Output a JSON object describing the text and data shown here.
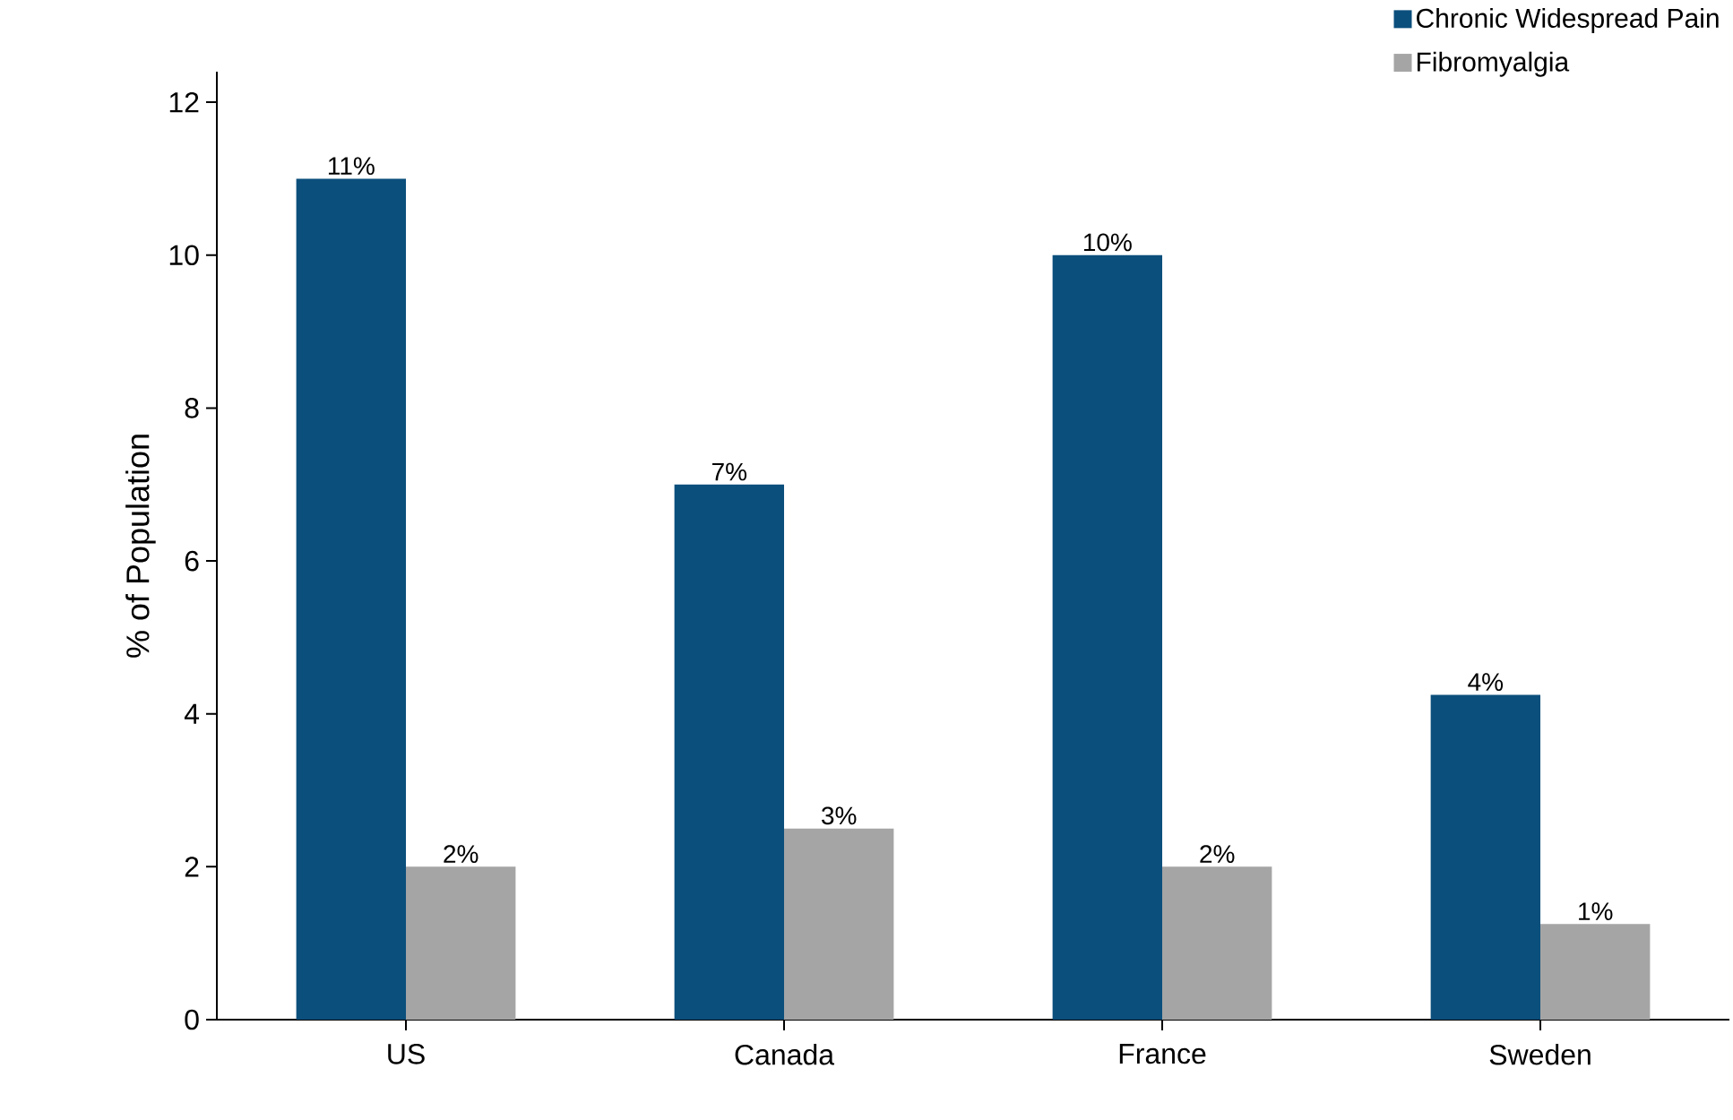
{
  "chart_data": {
    "type": "bar",
    "ylabel": "% of Population",
    "categories": [
      "US",
      "Canada",
      "France",
      "Sweden"
    ],
    "series": [
      {
        "name": "Chronic Widespread Pain",
        "color": "#0b4f7c",
        "values": [
          11,
          7,
          10,
          4.25
        ],
        "value_labels": [
          "11%",
          "7%",
          "10%",
          "4%"
        ]
      },
      {
        "name": "Fibromyalgia",
        "color": "#a5a5a5",
        "values": [
          2,
          2.5,
          2,
          1.25
        ],
        "value_labels": [
          "2%",
          "3%",
          "2%",
          "1%"
        ]
      }
    ],
    "ylim": [
      0,
      12.4
    ],
    "yticks": [
      0,
      2,
      4,
      6,
      8,
      10,
      12
    ],
    "legend": "top right"
  }
}
